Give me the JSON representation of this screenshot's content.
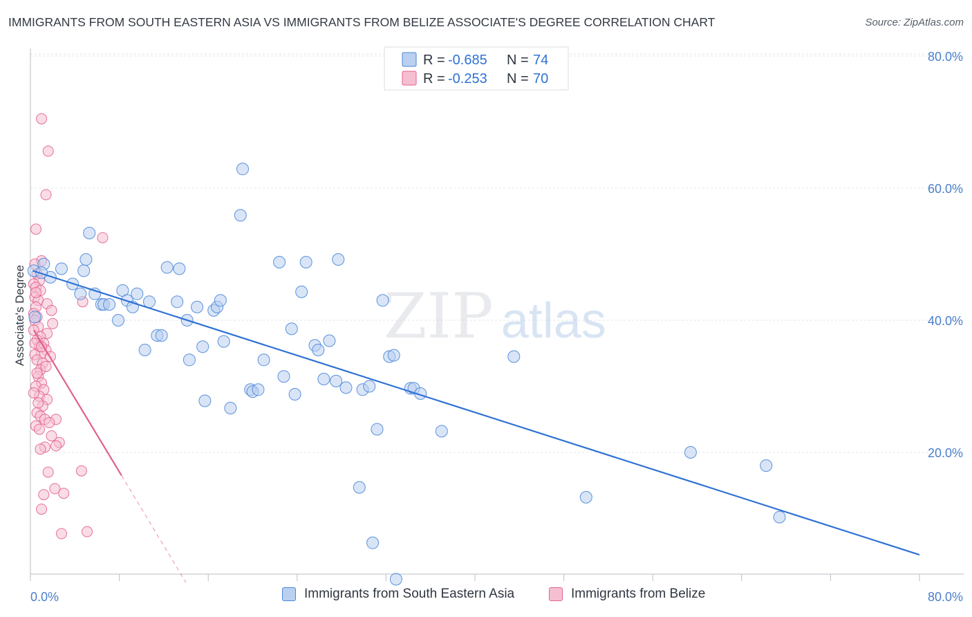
{
  "title": "IMMIGRANTS FROM SOUTH EASTERN ASIA VS IMMIGRANTS FROM BELIZE ASSOCIATE'S DEGREE CORRELATION CHART",
  "source": "Source: ZipAtlas.com",
  "watermark": {
    "zip": "ZIP",
    "atlas": "atlas"
  },
  "colors": {
    "blue": "#4a86d8",
    "blue_fill": "#b9d0f0",
    "blue_line": "#2f72d4",
    "pink": "#e2628f",
    "pink_fill": "#f6bfd1",
    "pink_line": "#e0608e",
    "grid": "#e2e6ea",
    "tick_text": "#4a7fcc"
  },
  "legend": {
    "r_label": "R =",
    "n_label": "N =",
    "series": [
      {
        "r": "-0.685",
        "n": "74"
      },
      {
        "r": "-0.253",
        "n": "70"
      }
    ]
  },
  "bottom_legend": [
    "Immigrants from South Eastern Asia",
    "Immigrants from Belize"
  ],
  "chart_data": {
    "type": "scatter",
    "xlabel": "",
    "ylabel": "Associate's Degree",
    "xlim": [
      0,
      80
    ],
    "ylim": [
      0,
      82
    ],
    "x_tick_labels": [
      "0.0%",
      "80.0%"
    ],
    "y_ticks": [
      20,
      40,
      60,
      80
    ],
    "y_tick_labels": [
      "20.0%",
      "40.0%",
      "60.0%",
      "80.0%"
    ],
    "grid": true,
    "legend_position": "top-center",
    "series": [
      {
        "name": "Immigrants from South Eastern Asia",
        "color": "blue",
        "r": -0.685,
        "n": 74,
        "trend": {
          "x0": 0.2,
          "y0": 47.5,
          "x1": 80,
          "y1": 4.5
        },
        "points": [
          [
            0.3,
            47.5
          ],
          [
            1.2,
            48.5
          ],
          [
            1.8,
            46.5
          ],
          [
            2.8,
            47.8
          ],
          [
            3.8,
            45.5
          ],
          [
            4.5,
            44
          ],
          [
            4.8,
            47.5
          ],
          [
            5.0,
            49.2
          ],
          [
            5.3,
            53.2
          ],
          [
            5.8,
            44.0
          ],
          [
            6.4,
            42.4
          ],
          [
            6.6,
            42.4
          ],
          [
            7.1,
            42.4
          ],
          [
            7.9,
            40.0
          ],
          [
            8.3,
            44.5
          ],
          [
            8.7,
            43.0
          ],
          [
            9.2,
            42.0
          ],
          [
            9.6,
            44.0
          ],
          [
            10.3,
            35.5
          ],
          [
            10.7,
            42.8
          ],
          [
            11.4,
            37.7
          ],
          [
            11.8,
            37.7
          ],
          [
            12.3,
            48.0
          ],
          [
            13.2,
            42.8
          ],
          [
            13.4,
            47.8
          ],
          [
            14.1,
            40.0
          ],
          [
            14.3,
            34.0
          ],
          [
            15.0,
            42.0
          ],
          [
            15.5,
            36.0
          ],
          [
            15.7,
            27.8
          ],
          [
            16.5,
            41.5
          ],
          [
            16.8,
            42.0
          ],
          [
            17.1,
            43.0
          ],
          [
            17.4,
            36.8
          ],
          [
            18.0,
            26.7
          ],
          [
            19.1,
            62.9
          ],
          [
            18.9,
            55.9
          ],
          [
            19.8,
            29.5
          ],
          [
            20.0,
            29.2
          ],
          [
            20.5,
            29.5
          ],
          [
            21.0,
            34.0
          ],
          [
            22.4,
            48.8
          ],
          [
            22.8,
            31.5
          ],
          [
            23.5,
            38.7
          ],
          [
            23.8,
            28.8
          ],
          [
            24.4,
            44.3
          ],
          [
            24.8,
            48.8
          ],
          [
            25.6,
            36.2
          ],
          [
            25.9,
            35.5
          ],
          [
            26.4,
            31.1
          ],
          [
            26.9,
            36.9
          ],
          [
            27.5,
            30.8
          ],
          [
            27.7,
            49.2
          ],
          [
            28.4,
            29.8
          ],
          [
            29.6,
            14.7
          ],
          [
            29.9,
            29.5
          ],
          [
            30.5,
            30.0
          ],
          [
            30.8,
            6.3
          ],
          [
            31.2,
            23.5
          ],
          [
            31.7,
            43.0
          ],
          [
            32.3,
            34.5
          ],
          [
            32.7,
            34.7
          ],
          [
            32.9,
            0.8
          ],
          [
            34.2,
            29.7
          ],
          [
            34.5,
            29.7
          ],
          [
            35.1,
            28.9
          ],
          [
            37.0,
            23.2
          ],
          [
            43.5,
            34.5
          ],
          [
            50.0,
            13.2
          ],
          [
            59.4,
            20.0
          ],
          [
            66.2,
            18.0
          ],
          [
            67.4,
            10.2
          ],
          [
            0.4,
            40.5
          ],
          [
            1.0,
            47.2
          ]
        ]
      },
      {
        "name": "Immigrants from Belize",
        "color": "pink",
        "r": -0.253,
        "n": 70,
        "trend": {
          "x0": 0.3,
          "y0": 38.5,
          "x1": 8.2,
          "y1": 16.5,
          "dash_x1": 14,
          "dash_y1": 0.3
        },
        "points": [
          [
            1.0,
            70.5
          ],
          [
            1.6,
            65.6
          ],
          [
            1.4,
            59.0
          ],
          [
            0.5,
            53.8
          ],
          [
            6.5,
            52.5
          ],
          [
            1.0,
            49.0
          ],
          [
            0.4,
            48.5
          ],
          [
            0.6,
            47.0
          ],
          [
            0.8,
            46.0
          ],
          [
            0.3,
            45.5
          ],
          [
            0.5,
            45.0
          ],
          [
            0.9,
            44.5
          ],
          [
            0.4,
            43.5
          ],
          [
            0.7,
            43.0
          ],
          [
            1.5,
            42.5
          ],
          [
            4.7,
            42.8
          ],
          [
            0.5,
            42.0
          ],
          [
            1.9,
            41.5
          ],
          [
            0.3,
            41.0
          ],
          [
            0.6,
            40.5
          ],
          [
            0.4,
            40.0
          ],
          [
            2.0,
            39.5
          ],
          [
            0.7,
            39.0
          ],
          [
            0.3,
            38.5
          ],
          [
            1.5,
            38.0
          ],
          [
            0.9,
            37.5
          ],
          [
            0.6,
            37.0
          ],
          [
            1.2,
            36.5
          ],
          [
            0.8,
            36.0
          ],
          [
            1.4,
            35.5
          ],
          [
            1.0,
            35.0
          ],
          [
            0.4,
            34.8
          ],
          [
            1.8,
            34.5
          ],
          [
            0.6,
            34.0
          ],
          [
            1.1,
            33.5
          ],
          [
            0.9,
            32.5
          ],
          [
            0.7,
            31.5
          ],
          [
            1.0,
            30.5
          ],
          [
            0.5,
            30.0
          ],
          [
            1.2,
            29.5
          ],
          [
            0.8,
            28.5
          ],
          [
            1.5,
            28.0
          ],
          [
            1.1,
            27.0
          ],
          [
            0.6,
            26.0
          ],
          [
            0.9,
            25.5
          ],
          [
            1.3,
            25.0
          ],
          [
            2.3,
            25.0
          ],
          [
            1.7,
            24.5
          ],
          [
            0.5,
            24.0
          ],
          [
            0.8,
            23.5
          ],
          [
            2.6,
            21.5
          ],
          [
            2.3,
            21.0
          ],
          [
            1.3,
            20.8
          ],
          [
            0.9,
            20.5
          ],
          [
            1.6,
            17.0
          ],
          [
            4.6,
            17.2
          ],
          [
            2.2,
            14.5
          ],
          [
            3.0,
            13.8
          ],
          [
            1.2,
            13.6
          ],
          [
            1.0,
            11.4
          ],
          [
            2.8,
            7.7
          ],
          [
            5.1,
            8.0
          ],
          [
            0.4,
            36.5
          ],
          [
            1.0,
            36.0
          ],
          [
            0.6,
            32.0
          ],
          [
            1.4,
            33.0
          ],
          [
            0.3,
            29.0
          ],
          [
            0.7,
            27.5
          ],
          [
            1.9,
            22.5
          ],
          [
            0.5,
            44.2
          ]
        ]
      }
    ]
  }
}
